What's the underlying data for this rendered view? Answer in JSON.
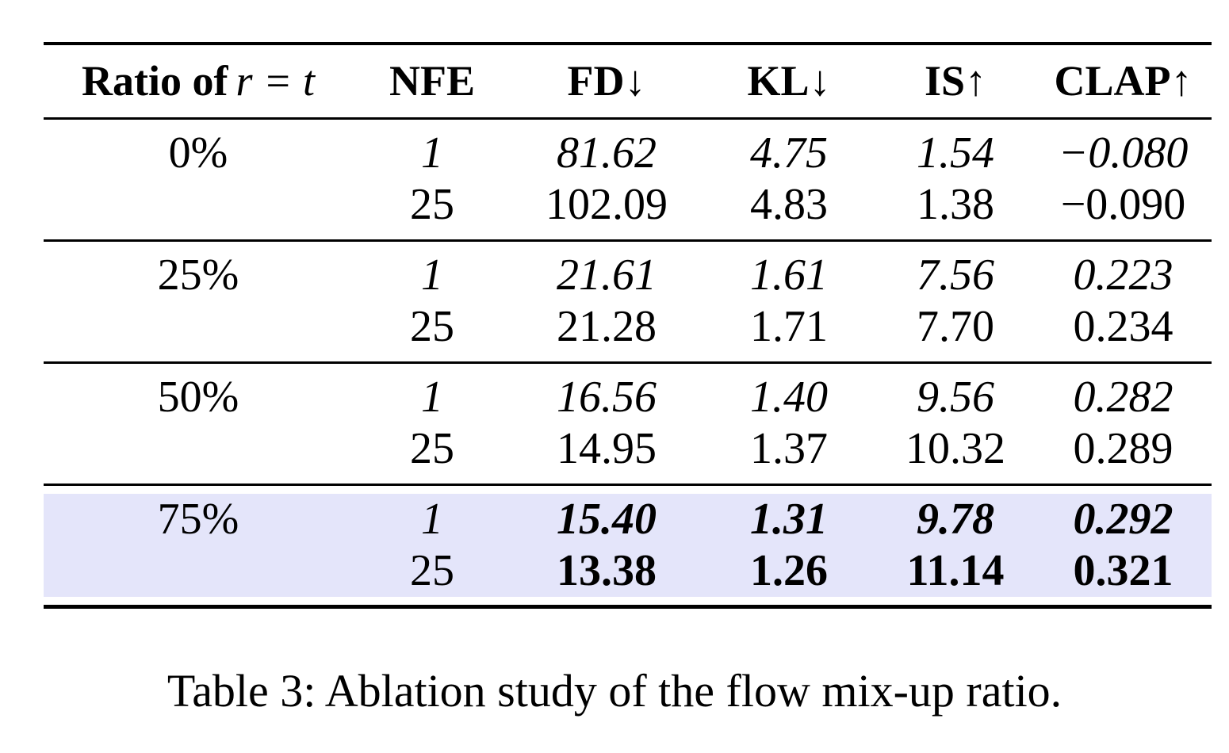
{
  "colors": {
    "background": "#ffffff",
    "text": "#000000",
    "rule": "#000000",
    "highlight_row": "#e4e5fa"
  },
  "table": {
    "header": {
      "ratio_prefix": "Ratio of",
      "ratio_math": "r = t",
      "nfe": "NFE",
      "fd": "FD↓",
      "kl": "KL↓",
      "is": "IS↑",
      "clap": "CLAP↑"
    },
    "groups": [
      {
        "ratio": "0%",
        "highlighted": false,
        "rows": [
          {
            "nfe": "1",
            "fd": "81.62",
            "kl": "4.75",
            "is": "1.54",
            "clap": "−0.080"
          },
          {
            "nfe": "25",
            "fd": "102.09",
            "kl": "4.83",
            "is": "1.38",
            "clap": "−0.090"
          }
        ]
      },
      {
        "ratio": "25%",
        "highlighted": false,
        "rows": [
          {
            "nfe": "1",
            "fd": "21.61",
            "kl": "1.61",
            "is": "7.56",
            "clap": "0.223"
          },
          {
            "nfe": "25",
            "fd": "21.28",
            "kl": "1.71",
            "is": "7.70",
            "clap": "0.234"
          }
        ]
      },
      {
        "ratio": "50%",
        "highlighted": false,
        "rows": [
          {
            "nfe": "1",
            "fd": "16.56",
            "kl": "1.40",
            "is": "9.56",
            "clap": "0.282"
          },
          {
            "nfe": "25",
            "fd": "14.95",
            "kl": "1.37",
            "is": "10.32",
            "clap": "0.289"
          }
        ]
      },
      {
        "ratio": "75%",
        "highlighted": true,
        "rows": [
          {
            "nfe": "1",
            "fd": "15.40",
            "kl": "1.31",
            "is": "9.78",
            "clap": "0.292"
          },
          {
            "nfe": "25",
            "fd": "13.38",
            "kl": "1.26",
            "is": "11.14",
            "clap": "0.321"
          }
        ]
      }
    ]
  },
  "caption": "Table 3: Ablation study of the flow mix-up ratio."
}
